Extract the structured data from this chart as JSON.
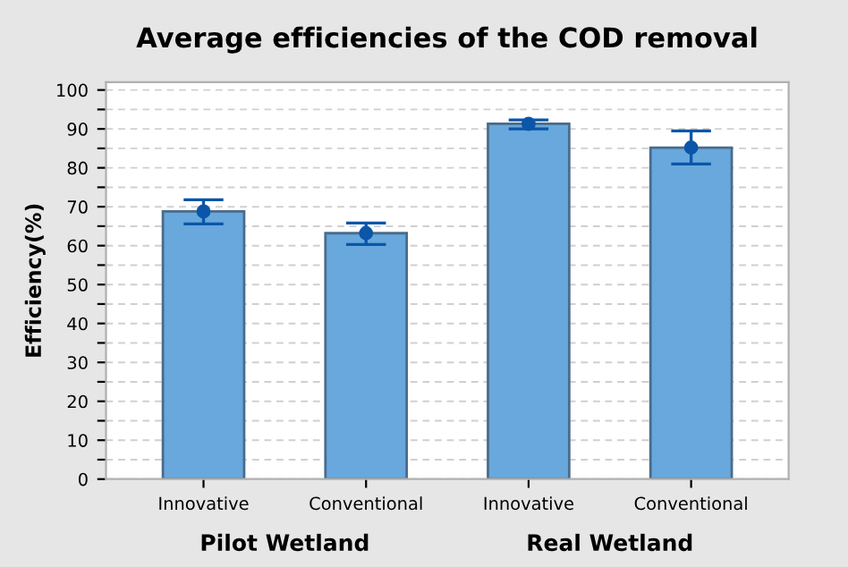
{
  "chart_data": {
    "type": "bar",
    "title": "Average efficiencies of the COD removal",
    "ylabel": "Efficiency(%)",
    "categories": [
      "Innovative",
      "Conventional",
      "Innovative",
      "Conventional"
    ],
    "series": [
      {
        "color": "#68a8dc",
        "values": [
          68.8,
          63.2,
          91.3,
          85.2
        ],
        "errors": [
          [
            65.6,
            71.8
          ],
          [
            60.3,
            65.8
          ],
          [
            90.0,
            92.3
          ],
          [
            81.0,
            89.5
          ]
        ]
      },
      {
        "type": "scatter",
        "color": "#0b56a8",
        "values": [
          68.8,
          63.2,
          91.3,
          85.2
        ]
      }
    ],
    "annotations": [
      "Pilot Wetland",
      "Real Wetland"
    ],
    "ylim": [
      0,
      102
    ],
    "yticks": [
      0,
      {
        "value": 5,
        "label": null
      },
      10,
      {
        "value": 15,
        "label": null
      },
      20,
      {
        "value": 25,
        "label": null
      },
      30,
      {
        "value": 35,
        "label": null
      },
      40,
      {
        "value": 45,
        "label": null
      },
      50,
      {
        "value": 55,
        "label": null
      },
      60,
      {
        "value": 65,
        "label": null
      },
      70,
      {
        "value": 75,
        "label": null
      },
      80,
      {
        "value": 85,
        "label": null
      },
      90,
      {
        "value": 95,
        "label": null
      },
      100
    ],
    "grid": "y",
    "marker": "circle"
  }
}
